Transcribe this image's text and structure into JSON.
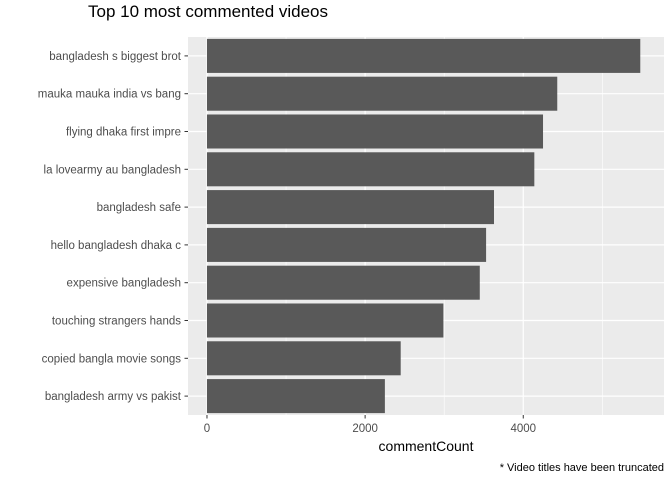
{
  "chart_data": {
    "type": "bar",
    "orientation": "horizontal",
    "title": "Top 10 most commented videos",
    "xlabel": "commentCount",
    "ylabel": "",
    "caption": "* Video titles have been truncated",
    "categories": [
      "bangladesh s biggest brot",
      "mauka mauka india vs bang",
      "flying  dhaka first impre",
      "la lovearmy au bangladesh",
      "bangladesh safe",
      "hello bangladesh dhaka  c",
      "expensive  bangladesh",
      "touching strangers hands",
      "copied bangla movie songs",
      "bangladesh army vs pakist"
    ],
    "values": [
      5480,
      4430,
      4250,
      4140,
      3630,
      3530,
      3450,
      2990,
      2450,
      2250
    ],
    "xlim": [
      -240,
      5780
    ],
    "xticks": [
      0,
      2000,
      4000
    ],
    "xtick_labels": [
      "0",
      "2000",
      "4000"
    ],
    "grid": true,
    "legend": "none",
    "colors": {
      "bar": "#595959",
      "panel": "#ebebeb",
      "grid": "#ffffff"
    }
  }
}
